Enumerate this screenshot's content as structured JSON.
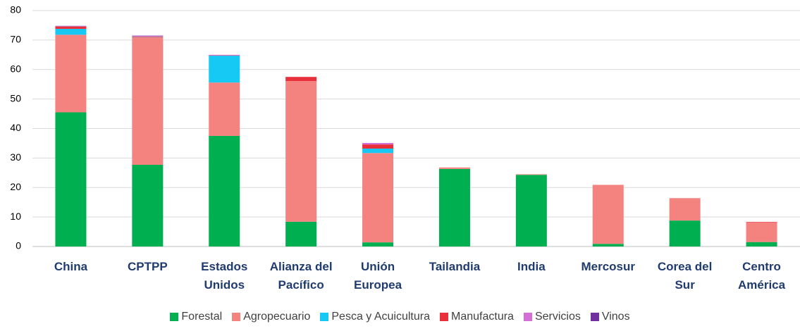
{
  "chart_data": {
    "type": "stacked_bar",
    "categories": [
      "China",
      "CPTPP",
      "Estados Unidos",
      "Alianza del Pacífico",
      "Unión Europea",
      "Tailandia",
      "India",
      "Mercosur",
      "Corea del Sur",
      "Centro América"
    ],
    "series": [
      {
        "name": "Forestal",
        "color": "#00b050",
        "values": [
          45.5,
          27.7,
          37.5,
          8.4,
          1.4,
          26.3,
          24.3,
          0.9,
          8.8,
          1.5
        ]
      },
      {
        "name": "Agropecuario",
        "color": "#f4827f",
        "values": [
          26.3,
          43.2,
          18.1,
          47.7,
          30.3,
          0.5,
          0.2,
          20.0,
          7.6,
          6.6
        ]
      },
      {
        "name": "Pesca y Acuicultura",
        "color": "#16c8f4",
        "values": [
          2.0,
          0.1,
          9.1,
          0.0,
          1.5,
          0.0,
          0.0,
          0.0,
          0.0,
          0.0
        ]
      },
      {
        "name": "Manufactura",
        "color": "#e8303a",
        "values": [
          0.8,
          0.2,
          0.1,
          1.4,
          1.4,
          0.0,
          0.0,
          0.0,
          0.0,
          0.2
        ]
      },
      {
        "name": "Servicios",
        "color": "#d46fd6",
        "values": [
          0.1,
          0.2,
          0.2,
          0.0,
          0.5,
          0.0,
          0.0,
          0.0,
          0.0,
          0.0
        ]
      },
      {
        "name": "Vinos",
        "color": "#7030a0",
        "values": [
          0.1,
          0.1,
          0.0,
          0.0,
          0.0,
          0.0,
          0.0,
          0.0,
          0.0,
          0.0
        ]
      }
    ],
    "ylim": [
      0,
      80
    ],
    "yticks": [
      0,
      10,
      20,
      30,
      40,
      50,
      60,
      70,
      80
    ],
    "grid": true,
    "legend": "bottom"
  }
}
